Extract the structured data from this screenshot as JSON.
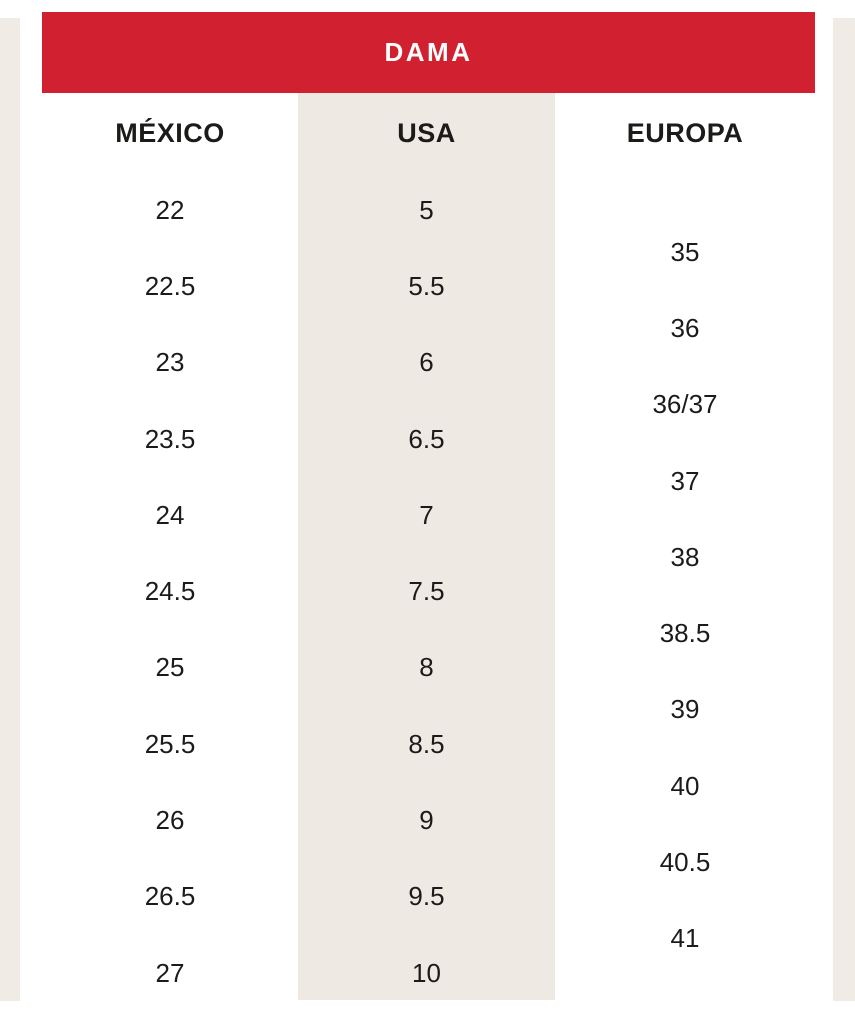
{
  "colors": {
    "header_red": "#d1202f",
    "header_text": "#ffffff",
    "usa_column_bg": "#efe9e4",
    "side_strip_bg": "#f1ebe6",
    "body_text": "#1c1b1a",
    "page_bg": "#ffffff"
  },
  "chart_data": {
    "type": "table",
    "title": "DAMA",
    "columns": [
      {
        "label": "MÉXICO",
        "values": [
          "22",
          "22.5",
          "23",
          "23.5",
          "24",
          "24.5",
          "25",
          "25.5",
          "26",
          "26.5",
          "27"
        ]
      },
      {
        "label": "USA",
        "values": [
          "5",
          "5.5",
          "6",
          "6.5",
          "7",
          "7.5",
          "8",
          "8.5",
          "9",
          "9.5",
          "10"
        ]
      },
      {
        "label": "EUROPA",
        "values": [
          "35",
          "36",
          "36/37",
          "37",
          "38",
          "38.5",
          "39",
          "40",
          "40.5",
          "41"
        ]
      }
    ],
    "layout": {
      "europa_offset_rows": 0.5,
      "usa_column_shaded": true,
      "grid": false,
      "legend": false,
      "title_position": "top-banner"
    }
  }
}
